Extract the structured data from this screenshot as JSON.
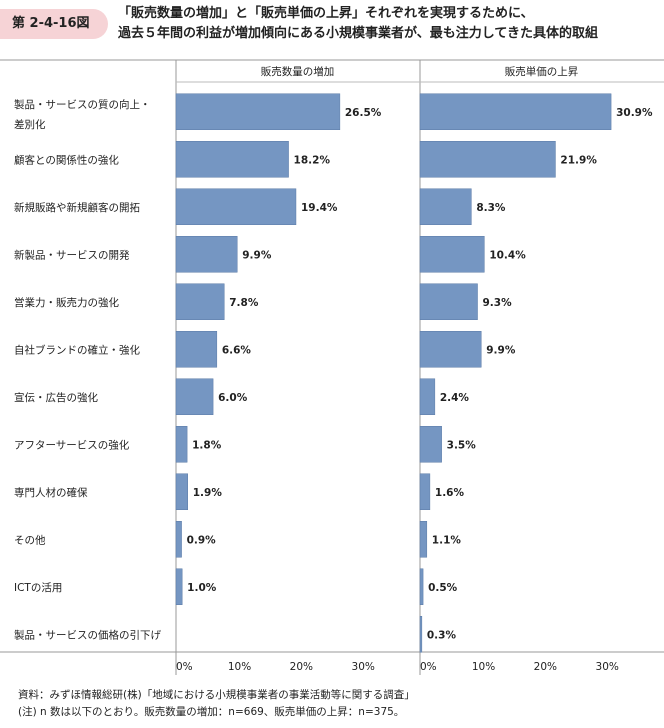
{
  "figure_number": "第 2-4-16図",
  "title_lines": [
    "「販売数量の増加」と「販売単価の上昇」それぞれを実現するために、",
    "過去５年間の利益が増加傾向にある小規模事業者が、最も注力してきた具体的取組"
  ],
  "chart_data": {
    "type": "bar",
    "orientation": "horizontal",
    "categories": [
      [
        "製品・サービスの質の向上・",
        "差別化"
      ],
      [
        "顧客との関係性の強化"
      ],
      [
        "新規販路や新規顧客の開拓"
      ],
      [
        "新製品・サービスの開発"
      ],
      [
        "営業力・販売力の強化"
      ],
      [
        "自社ブランドの確立・強化"
      ],
      [
        "宣伝・広告の強化"
      ],
      [
        "アフターサービスの強化"
      ],
      [
        "専門人材の確保"
      ],
      [
        "その他"
      ],
      [
        "ICTの活用"
      ],
      [
        "製品・サービスの価格の引下げ"
      ]
    ],
    "panels": [
      {
        "title": "販売数量の増加",
        "values": [
          26.5,
          18.2,
          19.4,
          9.9,
          7.8,
          6.6,
          6.0,
          1.8,
          1.9,
          0.9,
          1.0,
          null
        ],
        "labels": [
          "26.5%",
          "18.2%",
          "19.4%",
          "9.9%",
          "7.8%",
          "6.6%",
          "6.0%",
          "1.8%",
          "1.9%",
          "0.9%",
          "1.0%",
          ""
        ]
      },
      {
        "title": "販売単価の上昇",
        "values": [
          30.9,
          21.9,
          8.3,
          10.4,
          9.3,
          9.9,
          2.4,
          3.5,
          1.6,
          1.1,
          0.5,
          0.3
        ],
        "labels": [
          "30.9%",
          "21.9%",
          "8.3%",
          "10.4%",
          "9.3%",
          "9.9%",
          "2.4%",
          "3.5%",
          "1.6%",
          "1.1%",
          "0.5%",
          "0.3%"
        ]
      }
    ],
    "xlim": [
      0,
      38
    ],
    "x_ticks": [
      "0%",
      "10%",
      "20%",
      "30%"
    ],
    "tick_values": [
      0,
      10,
      20,
      30
    ],
    "bar_color": "#7596c2",
    "grid": false
  },
  "notes": [
    "資料：みずほ情報総研(株)「地域における小規模事業者の事業活動等に関する調査」",
    "(注) n 数は以下のとおり。販売数量の増加：n=669、販売単価の上昇：n=375。"
  ]
}
